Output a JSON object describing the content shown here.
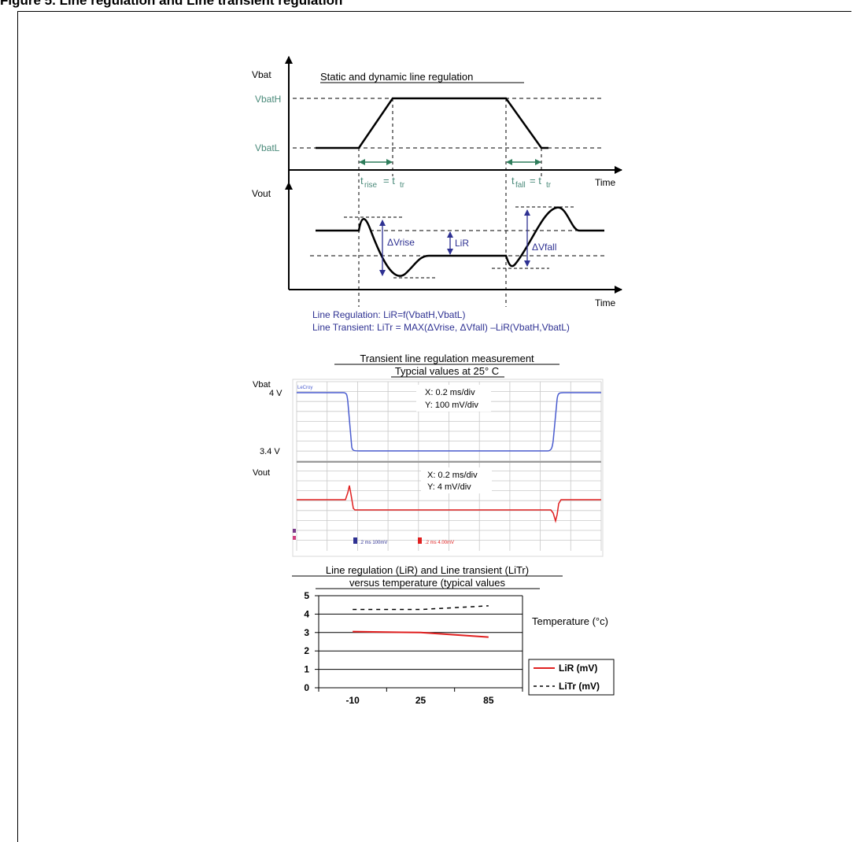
{
  "figure": {
    "title": "Figure 5.    Line regulation and Line transient regulation"
  },
  "diagram": {
    "title": "Static and dynamic line regulation",
    "vbat_label": "Vbat",
    "vout_label": "Vout",
    "vbath_label": "VbatH",
    "vbatl_label": "VbatL",
    "time_label": "Time",
    "trise_label": "rise",
    "tfall_label": "fall",
    "tr_sub": "tr",
    "dvrise_label": "ΔVrise",
    "dvfall_label": "ΔVfall",
    "lir_label": "LiR",
    "formula_line1": "Line Regulation:  LiR=f(VbatH,VbatL)",
    "formula_line2": "Line Transient:    LiTr = MAX(ΔVrise, ΔVfall) –LiR(VbatH,VbatL)",
    "colors": {
      "green_label": "#4a8a7a",
      "blue_annot": "#2e3192",
      "arrow_green": "#2e7d5b"
    }
  },
  "scope": {
    "title_line1": "Transient line regulation measurement",
    "title_line2": "Typcial values at 25° C",
    "vbat_label": "Vbat",
    "vout_label": "Vout",
    "v4_label": "4 V",
    "v34_label": "3.4 V",
    "ch1_scale_x": "X: 0.2 ms/div",
    "ch1_scale_y": "Y: 100 mV/div",
    "ch2_scale_x": "X: 0.2 ms/div",
    "ch2_scale_y": "Y: 4 mV/div",
    "brand": "LeCroy",
    "footer_a": ".2  ms  100mV",
    "footer_b": ".2  ms  4.00mV",
    "colors": {
      "ch_a": "#4a5ccf",
      "ch_b": "#e02020",
      "grid": "#c8c8c8"
    }
  },
  "chart_data": {
    "type": "line",
    "title": "Line regulation (LiR) and Line transient (LiTr) versus temperature (typical values",
    "title_line1": "Line regulation (LiR) and Line transient (LiTr)",
    "title_line2": "versus temperature (typical values",
    "xlabel": "Temperature (°c)",
    "ylabel": "",
    "categories": [
      "-10",
      "25",
      "85"
    ],
    "ylim": [
      0,
      5
    ],
    "yticks": [
      0,
      1,
      2,
      3,
      4,
      5
    ],
    "grid": true,
    "legend_position": "right",
    "series": [
      {
        "name": "LiR (mV)",
        "values": [
          3.05,
          3.0,
          2.75
        ],
        "color": "#e02020",
        "style": "solid"
      },
      {
        "name": "LiTr (mV)",
        "values": [
          4.25,
          4.25,
          4.45
        ],
        "color": "#000000",
        "style": "dashed"
      }
    ]
  }
}
